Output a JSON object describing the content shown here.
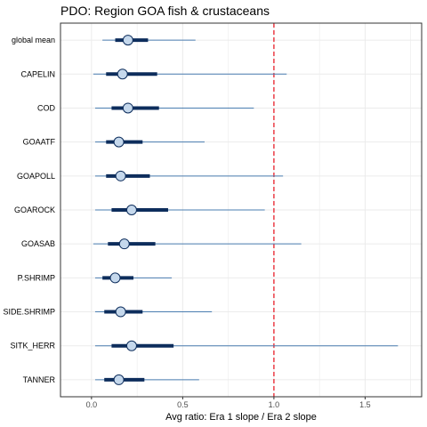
{
  "chart_data": {
    "type": "interval",
    "title": "PDO: Region GOA fish & crustaceans",
    "xlabel": "Avg ratio: Era 1 slope / Era 2 slope",
    "ylabel": "",
    "xlim": [
      -0.17,
      1.81
    ],
    "xticks": [
      "0.0",
      "0.5",
      "1.0",
      "1.5"
    ],
    "xtick_values": [
      0.0,
      0.5,
      1.0,
      1.5
    ],
    "reference_line": 1.0,
    "grid": true,
    "categories": [
      "global mean",
      "CAPELIN",
      "COD",
      "GOAATF",
      "GOAPOLL",
      "GOAROCK",
      "GOASAB",
      "P.SHRIMP",
      "SIDE.SHRIMP",
      "SITK_HERR",
      "TANNER"
    ],
    "series": [
      {
        "median": 0.2,
        "inner": [
          0.13,
          0.31
        ],
        "outer": [
          0.06,
          0.57
        ]
      },
      {
        "median": 0.17,
        "inner": [
          0.08,
          0.36
        ],
        "outer": [
          0.01,
          1.07
        ]
      },
      {
        "median": 0.2,
        "inner": [
          0.11,
          0.37
        ],
        "outer": [
          0.02,
          0.89
        ]
      },
      {
        "median": 0.15,
        "inner": [
          0.08,
          0.28
        ],
        "outer": [
          0.02,
          0.62
        ]
      },
      {
        "median": 0.16,
        "inner": [
          0.08,
          0.32
        ],
        "outer": [
          0.02,
          1.05
        ]
      },
      {
        "median": 0.22,
        "inner": [
          0.11,
          0.42
        ],
        "outer": [
          0.02,
          0.95
        ]
      },
      {
        "median": 0.18,
        "inner": [
          0.09,
          0.35
        ],
        "outer": [
          0.01,
          1.15
        ]
      },
      {
        "median": 0.13,
        "inner": [
          0.06,
          0.23
        ],
        "outer": [
          0.02,
          0.44
        ]
      },
      {
        "median": 0.16,
        "inner": [
          0.07,
          0.28
        ],
        "outer": [
          0.02,
          0.66
        ]
      },
      {
        "median": 0.22,
        "inner": [
          0.11,
          0.45
        ],
        "outer": [
          0.02,
          1.68
        ]
      },
      {
        "median": 0.15,
        "inner": [
          0.07,
          0.29
        ],
        "outer": [
          0.02,
          0.59
        ]
      }
    ],
    "colors": {
      "outer_line": "#4a7db0",
      "inner_line": "#0d2d5c",
      "point_fill": "#c5d8ec",
      "point_stroke": "#0d2d5c",
      "ref_line": "#e8202a",
      "grid": "#ebebeb",
      "panel_border": "#333333"
    }
  }
}
